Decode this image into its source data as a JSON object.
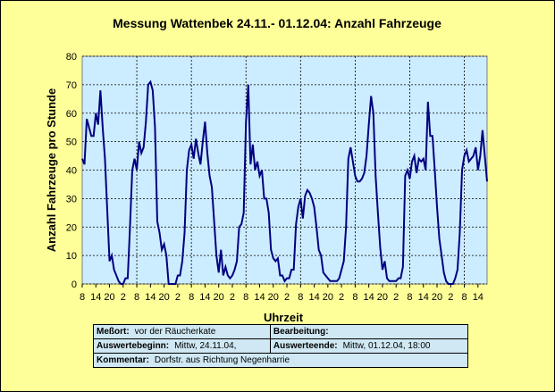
{
  "chart_data": {
    "type": "line",
    "title": "Messung Wattenbek 24.11.- 01.12.04:  Anzahl Fahrzeuge",
    "xlabel": "Uhrzeit",
    "ylabel": "Anzahl Fahrzeuge pro Stunde",
    "ylim": [
      0,
      80
    ],
    "yticks": [
      0,
      10,
      20,
      30,
      40,
      50,
      60,
      70,
      80
    ],
    "xticks": [
      "8",
      "14",
      "20",
      "2",
      "8",
      "14",
      "20",
      "2",
      "8",
      "14",
      "20",
      "2",
      "8",
      "14",
      "20",
      "2",
      "8",
      "14",
      "20",
      "2",
      "8",
      "14",
      "20",
      "2",
      "8",
      "14",
      "20",
      "2",
      "8",
      "14"
    ],
    "grid": true,
    "line_color": "#000080",
    "plot_background": "#ccecff",
    "x_start_hour": 8,
    "series": [
      {
        "values": [
          44,
          42,
          58,
          55,
          52,
          52,
          60,
          56,
          68,
          55,
          44,
          26,
          8,
          10,
          5,
          3,
          1,
          0,
          0,
          2,
          2,
          20,
          40,
          44,
          40,
          50,
          46,
          48,
          57,
          70,
          71,
          68,
          55,
          22,
          18,
          12,
          14,
          10,
          0,
          0,
          0,
          0,
          3,
          3,
          8,
          18,
          40,
          47,
          49,
          44,
          51,
          46,
          42,
          50,
          57,
          46,
          38,
          34,
          22,
          10,
          4,
          12,
          3,
          6,
          3,
          2,
          3,
          5,
          8,
          20,
          21,
          25,
          57,
          70,
          42,
          49,
          40,
          43,
          38,
          40,
          30,
          30,
          25,
          12,
          9,
          8,
          9,
          3,
          3,
          1,
          2,
          2,
          5,
          5,
          21,
          27,
          30,
          23,
          31,
          33,
          32,
          30,
          27,
          20,
          12,
          10,
          4,
          3,
          2,
          1,
          1,
          1,
          1,
          2,
          5,
          8,
          20,
          44,
          48,
          43,
          38,
          36,
          36,
          37,
          39,
          45,
          56,
          66,
          60,
          38,
          25,
          13,
          5,
          8,
          2,
          1,
          1,
          1,
          1,
          2,
          2,
          6,
          38,
          40,
          37,
          43,
          45,
          39,
          44,
          43,
          44,
          40,
          64,
          52,
          52,
          40,
          27,
          16,
          10,
          4,
          1,
          0,
          0,
          0,
          2,
          5,
          18,
          40,
          45,
          47,
          43,
          44,
          45,
          48,
          40,
          45,
          54,
          45,
          36
        ]
      }
    ]
  },
  "info": {
    "messort_label": "Meßort:",
    "messort_value": "vor der Räucherkate",
    "bearbeitung_label": "Bearbeitung:",
    "bearbeitung_value": "",
    "beginn_label": "Auswertebeginn:",
    "beginn_value": "Mittw, 24.11.04,",
    "ende_label": "Auswerteende:",
    "ende_value": "Mittw, 01.12.04, 18:00",
    "kommentar_label": "Kommentar:",
    "kommentar_value": "Dorfstr. aus Richtung Negenharrie"
  }
}
